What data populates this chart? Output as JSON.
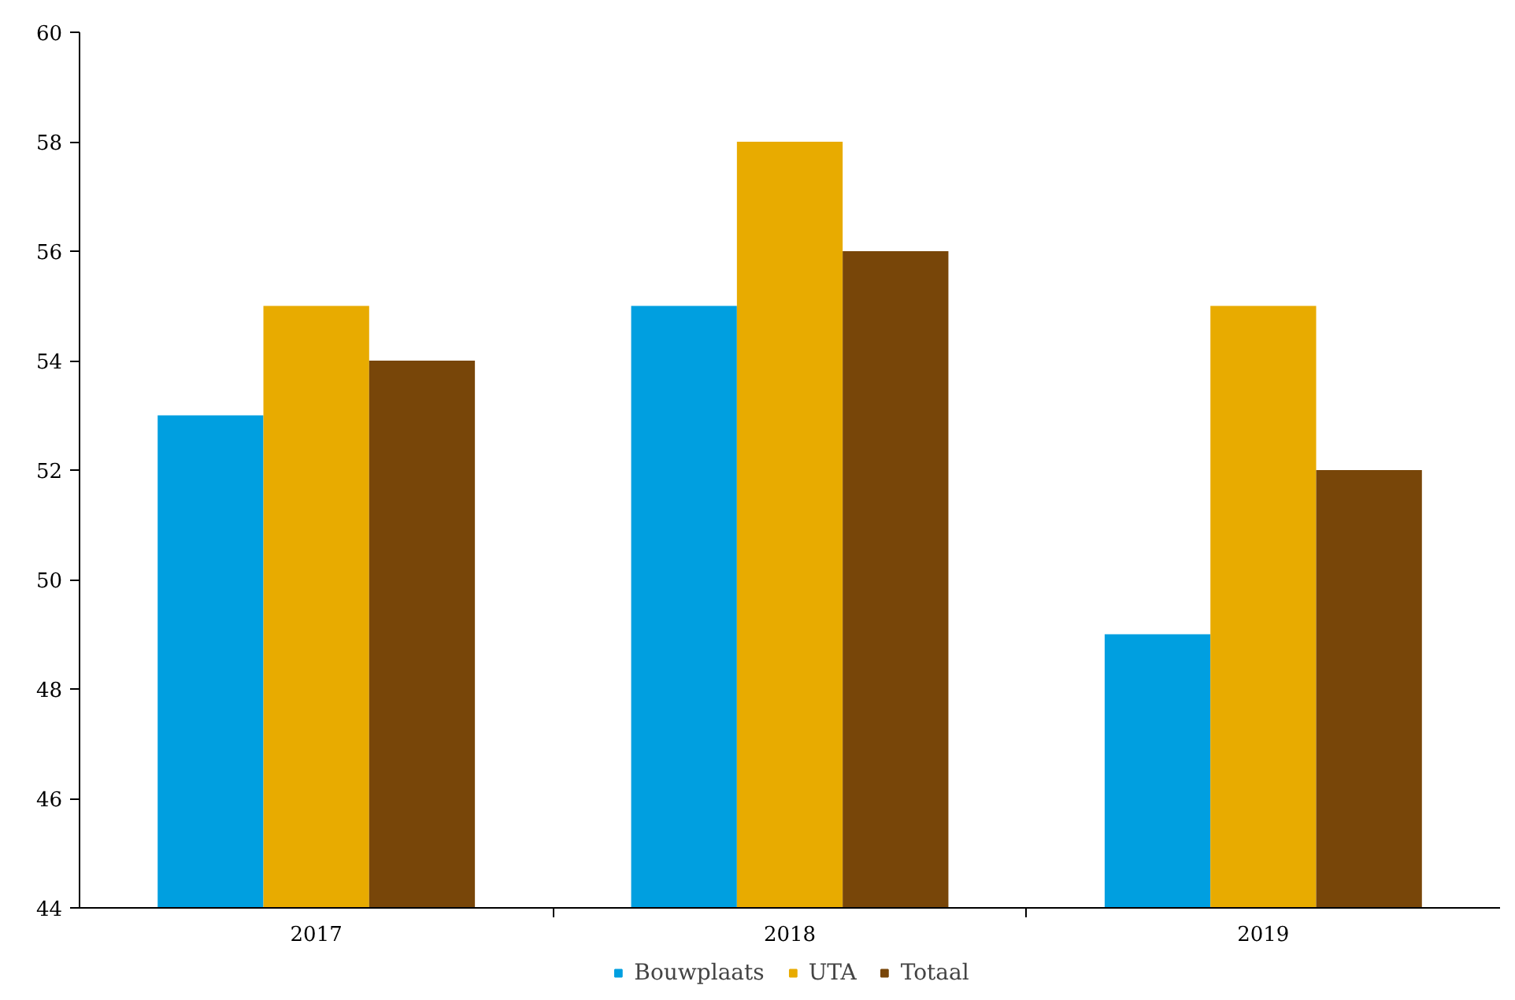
{
  "chart_data": {
    "type": "bar",
    "categories": [
      "2017",
      "2018",
      "2019"
    ],
    "series": [
      {
        "name": "Bouwplaats",
        "color": "#009fe0",
        "values": [
          53,
          55,
          49
        ]
      },
      {
        "name": "UTA",
        "color": "#e8ab00",
        "values": [
          55,
          58,
          55
        ]
      },
      {
        "name": "Totaal",
        "color": "#784609",
        "values": [
          54,
          56,
          52
        ]
      }
    ],
    "ylim": [
      44,
      60
    ],
    "yticks": [
      44,
      46,
      48,
      50,
      52,
      54,
      56,
      58,
      60
    ],
    "grid": false,
    "legend": "bottom"
  }
}
